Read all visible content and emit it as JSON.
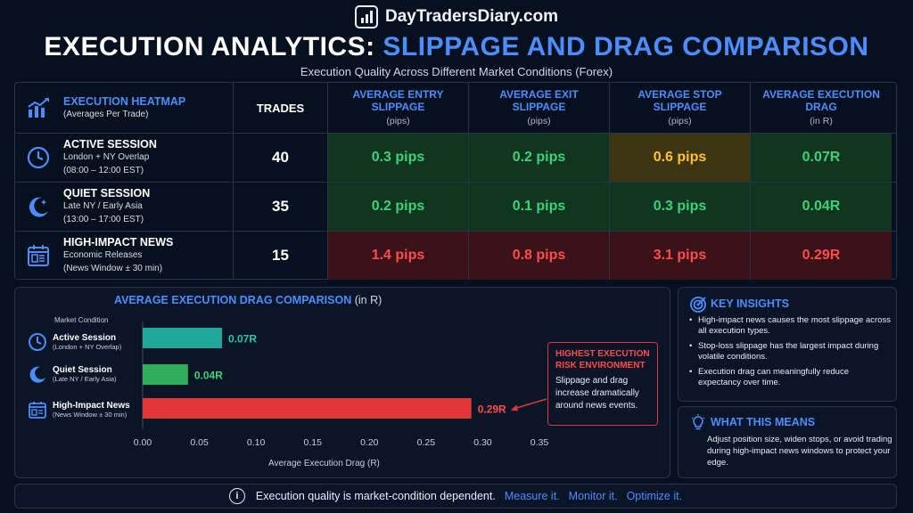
{
  "brand": {
    "name": "DayTradersDiary.com"
  },
  "title": {
    "part1": "EXECUTION ANALYTICS:",
    "part2": "SLIPPAGE AND DRAG COMPARISON"
  },
  "subtitle": "Execution Quality Across Different Market Conditions (Forex)",
  "table": {
    "header": {
      "title": "EXECUTION HEATMAP",
      "sub": "(Averages Per Trade)",
      "trades": "TRADES",
      "metrics": [
        {
          "label1": "AVERAGE ENTRY",
          "label2": "SLIPPAGE",
          "unit": "(pips)"
        },
        {
          "label1": "AVERAGE EXIT",
          "label2": "SLIPPAGE",
          "unit": "(pips)"
        },
        {
          "label1": "AVERAGE STOP",
          "label2": "SLIPPAGE",
          "unit": "(pips)"
        },
        {
          "label1": "AVERAGE EXECUTION",
          "label2": "DRAG",
          "unit": "(in R)"
        }
      ]
    },
    "rows": [
      {
        "title": "ACTIVE SESSION",
        "sub1": "London + NY Overlap",
        "sub2": "(08:00 – 12:00 EST)",
        "trades": "40",
        "values": [
          "0.3 pips",
          "0.2 pips",
          "0.6 pips",
          "0.07R"
        ],
        "status": [
          "good",
          "good",
          "warn",
          "good"
        ]
      },
      {
        "title": "QUIET SESSION",
        "sub1": "Late NY / Early Asia",
        "sub2": "(13:00 – 17:00 EST)",
        "trades": "35",
        "values": [
          "0.2 pips",
          "0.1 pips",
          "0.3 pips",
          "0.04R"
        ],
        "status": [
          "good",
          "good",
          "good",
          "good"
        ]
      },
      {
        "title": "HIGH-IMPACT NEWS",
        "sub1": "Economic Releases",
        "sub2": "(News Window ± 30 min)",
        "trades": "15",
        "values": [
          "1.4 pips",
          "0.8 pips",
          "3.1 pips",
          "0.29R"
        ],
        "status": [
          "bad",
          "bad",
          "bad",
          "bad"
        ]
      }
    ]
  },
  "chart_data": {
    "type": "bar",
    "orientation": "horizontal",
    "title": "AVERAGE EXECUTION DRAG COMPARISON",
    "title_suffix": "(in R)",
    "category_axis_title": "Market Condition",
    "categories": [
      {
        "label": "Active Session",
        "sub": "(London + NY Overlap)"
      },
      {
        "label": "Quiet Session",
        "sub": "(Late NY / Early Asia)"
      },
      {
        "label": "High-Impact News",
        "sub": "(News Window ± 30 min)"
      }
    ],
    "values": [
      0.07,
      0.04,
      0.29
    ],
    "value_labels": [
      "0.07R",
      "0.04R",
      "0.29R"
    ],
    "bar_colors": [
      "#1fa89a",
      "#2fae5c",
      "#e0363a"
    ],
    "label_colors": [
      "#2ec4a6",
      "#3dd17a",
      "#ff4d4d"
    ],
    "xlabel": "Average Execution Drag (R)",
    "xlim": [
      0,
      0.35
    ],
    "xticks": [
      "0.00",
      "0.05",
      "0.10",
      "0.15",
      "0.20",
      "0.25",
      "0.30",
      "0.35"
    ],
    "grid": false,
    "annotation": {
      "title_line1": "HIGHEST EXECUTION",
      "title_line2": "RISK ENVIRONMENT",
      "body_line1": "Slippage and drag",
      "body_line2": "increase dramatically",
      "body_line3": "around news events."
    }
  },
  "insights": {
    "title": "KEY INSIGHTS",
    "items": [
      "High-impact news causes the most slippage across all execution types.",
      "Stop-loss slippage has the largest impact during volatile conditions.",
      "Execution drag can meaningfully reduce expectancy over time."
    ]
  },
  "what_means": {
    "title": "WHAT THIS MEANS",
    "body": "Adjust position size, widen stops, or avoid trading during high-impact news windows to protect your edge."
  },
  "footer": {
    "lead": "Execution quality is market-condition dependent.",
    "h1": "Measure it.",
    "h2": "Monitor it.",
    "h3": "Optimize it."
  },
  "colors": {
    "accent": "#4c8dff",
    "good": "#3dd17a",
    "warn": "#ffc233",
    "bad": "#ff4d4d",
    "background": "#07101f"
  }
}
